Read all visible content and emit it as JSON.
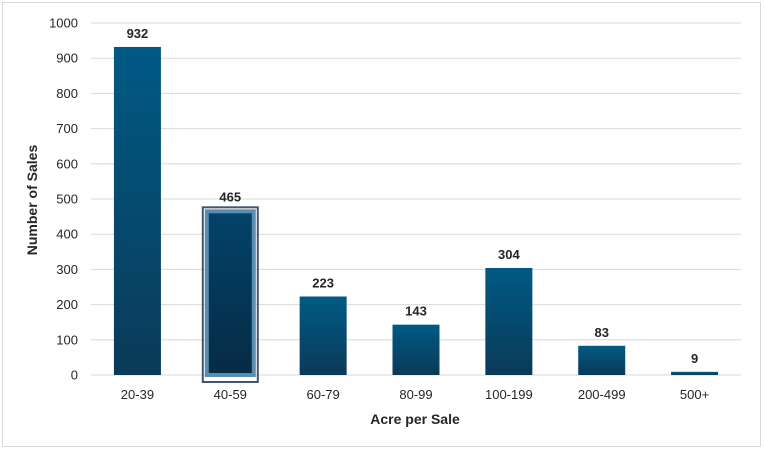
{
  "chart_data": {
    "type": "bar",
    "categories": [
      "20-39",
      "40-59",
      "60-79",
      "80-99",
      "100-199",
      "200-499",
      "500+"
    ],
    "values": [
      932,
      465,
      223,
      143,
      304,
      83,
      9
    ],
    "title": "",
    "xlabel": "Acre per Sale",
    "ylabel": "Number of Sales",
    "ylim": [
      0,
      1000
    ],
    "yticks": [
      0,
      100,
      200,
      300,
      400,
      500,
      600,
      700,
      800,
      900,
      1000
    ],
    "grid": true,
    "highlighted_category": "40-59",
    "colors": {
      "bar_top": "#005a85",
      "bar_bottom": "#0b3a58",
      "highlight_top": "#03436a",
      "highlight_bottom": "#062b45",
      "highlight_border": "#5b8db0",
      "gridline": "#d9d9d9",
      "text": "#262626"
    }
  }
}
